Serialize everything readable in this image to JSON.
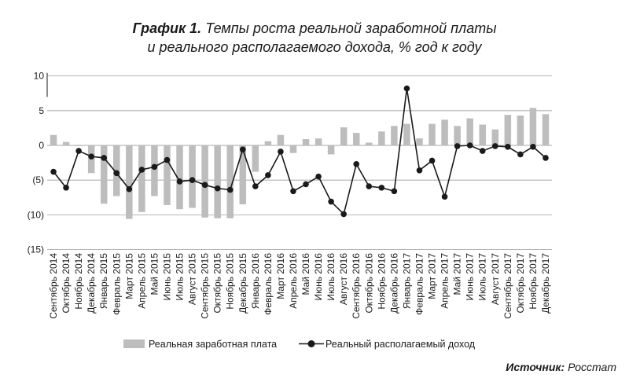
{
  "title": {
    "number": "График 1.",
    "line1": "Темпы роста реальной заработной платы",
    "line2": "и реального располагаемого дохода, %  год к году"
  },
  "source": {
    "label": "Источник:",
    "value": "Росстат"
  },
  "chart_data": {
    "type": "bar",
    "yticks": [
      "10",
      "5",
      "0",
      "(5)",
      "(10)",
      "(15)"
    ],
    "ytick_values": [
      10,
      5,
      0,
      -5,
      -10,
      -15
    ],
    "ylim": [
      -15,
      10
    ],
    "grid": true,
    "legend_position": "bottom",
    "colors": {
      "bar": "#bdbdbd",
      "line": "#1a1a1a",
      "marker": "#1a1a1a",
      "grid": "#8a8a8a"
    },
    "categories": [
      "Сентябрь 2014",
      "Октябрь 2014",
      "Ноябрь 2014",
      "Декабрь 2014",
      "Январь 2015",
      "Февраль 2015",
      "Март 2015",
      "Апрель 2015",
      "Май 2015",
      "Июнь 2015",
      "Июль 2015",
      "Август 2015",
      "Сентябрь 2015",
      "Октябрь 2015",
      "Ноябрь 2015",
      "Декабрь 2015",
      "Январь 2016",
      "Февраль 2016",
      "Март 2016",
      "Апрель 2016",
      "Май 2016",
      "Июнь 2016",
      "Июль 2016",
      "Август 2016",
      "Сентябрь 2016",
      "Октябрь 2016",
      "Ноябрь 2016",
      "Декабрь 2016",
      "Январь 2017",
      "Февраль 2017",
      "Март 2017",
      "Апрель 2017",
      "Май 2017",
      "Июнь 2017",
      "Июль 2017",
      "Август 2017",
      "Сентябрь 2017",
      "Октябрь 2017",
      "Ноябрь 2017",
      "Декабрь 2017"
    ],
    "series": [
      {
        "name": "Реальная заработная плата",
        "kind": "bar",
        "values": [
          1.5,
          0.5,
          -0.1,
          -4.0,
          -8.4,
          -7.3,
          -10.6,
          -9.6,
          -7.3,
          -8.6,
          -9.2,
          -9.0,
          -10.4,
          -10.5,
          -10.5,
          -8.5,
          -3.8,
          0.6,
          1.5,
          -1.1,
          0.9,
          1.0,
          -1.3,
          2.6,
          1.8,
          0.4,
          2.0,
          2.8,
          3.1,
          1.0,
          3.1,
          3.7,
          2.8,
          3.9,
          3.0,
          2.3,
          4.4,
          4.3,
          5.4,
          4.5
        ]
      },
      {
        "name": "Реальный располагаемый доход",
        "kind": "line",
        "values": [
          -3.8,
          -6.1,
          -0.8,
          -1.6,
          -1.8,
          -4.0,
          -6.3,
          -3.5,
          -3.1,
          -2.1,
          -5.2,
          -5.0,
          -5.7,
          -6.2,
          -6.4,
          -0.6,
          -5.9,
          -4.3,
          -0.9,
          -6.6,
          -5.6,
          -4.5,
          -8.1,
          -9.9,
          -2.7,
          -5.9,
          -6.1,
          -6.6,
          8.2,
          -3.6,
          -2.2,
          -7.4,
          -0.1,
          0.0,
          -0.8,
          -0.1,
          -0.2,
          -1.3,
          -0.2,
          -1.8
        ]
      }
    ]
  }
}
